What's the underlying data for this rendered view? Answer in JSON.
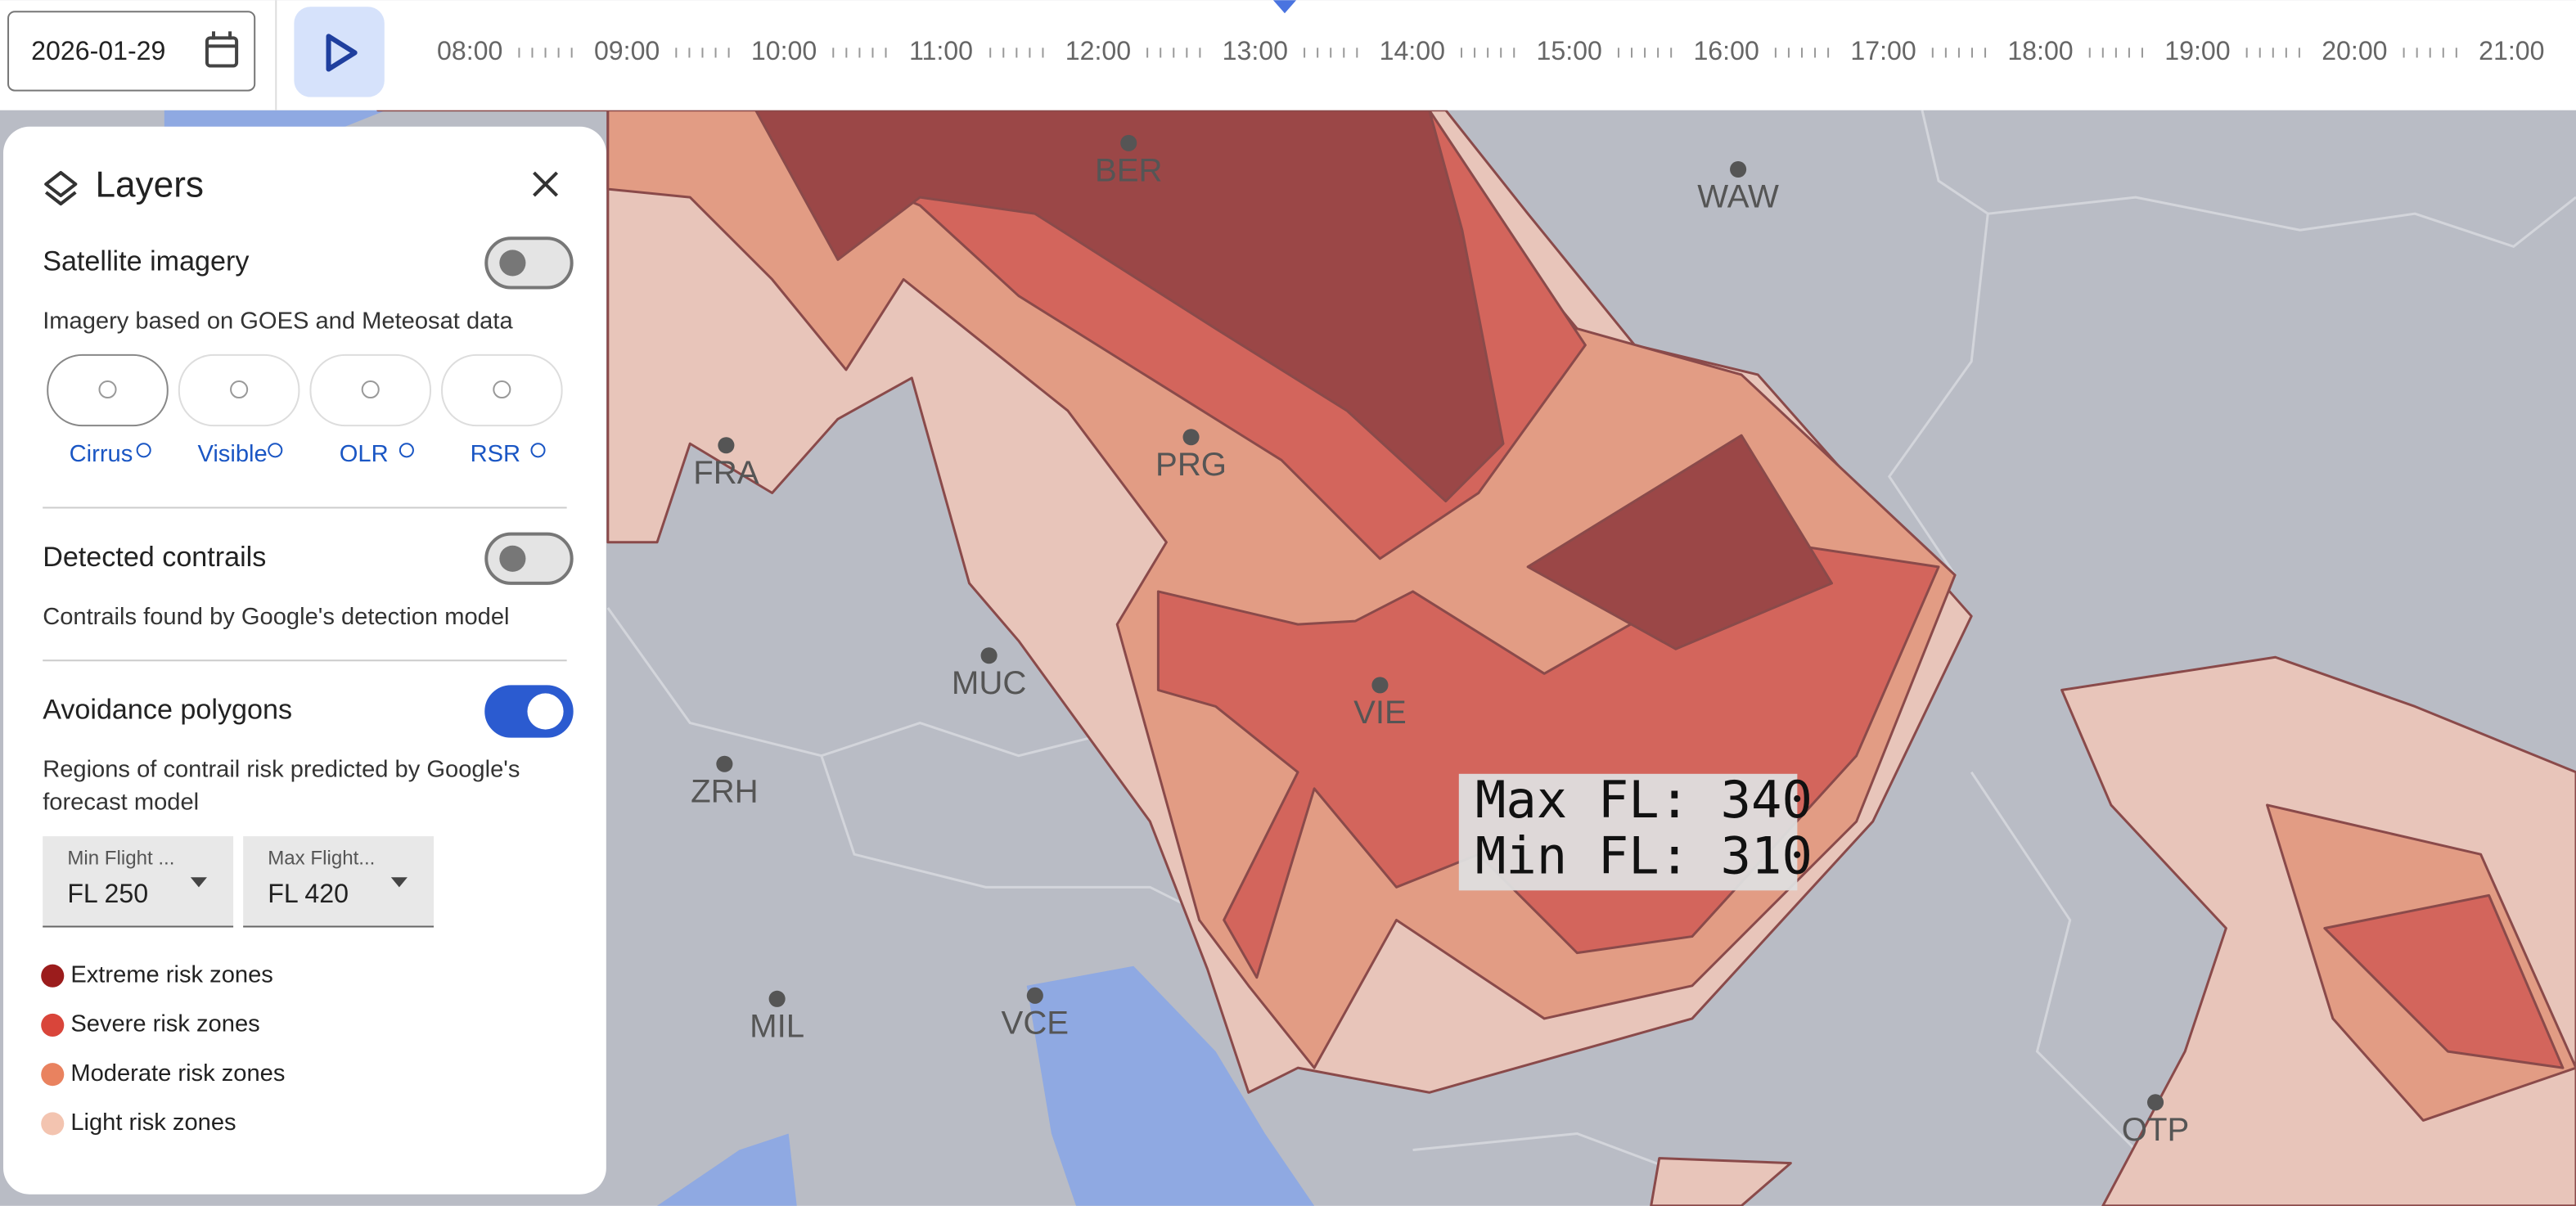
{
  "toolbar": {
    "date": "2026-01-29",
    "hours": [
      "08:00",
      "09:00",
      "10:00",
      "11:00",
      "12:00",
      "13:00",
      "14:00",
      "15:00",
      "16:00",
      "17:00",
      "18:00",
      "19:00",
      "20:00",
      "21:00"
    ]
  },
  "layers": {
    "title": "Layers",
    "satellite": {
      "label": "Satellite imagery",
      "enabled": false,
      "description": "Imagery based on GOES and Meteosat data",
      "options": [
        "Cirrus",
        "Visible",
        "OLR",
        "RSR"
      ]
    },
    "contrails": {
      "label": "Detected contrails",
      "enabled": false,
      "description": "Contrails found by Google's detection model"
    },
    "avoidance": {
      "label": "Avoidance polygons",
      "enabled": true,
      "description": [
        "Regions of contrail risk predicted by Google's",
        "forecast model"
      ],
      "min_flight": {
        "label": "Min Flight ...",
        "value": "FL 250"
      },
      "max_flight": {
        "label": "Max Flight...",
        "value": "FL 420"
      },
      "legend": [
        "Extreme risk zones",
        "Severe risk zones",
        "Moderate risk zones",
        "Light risk zones"
      ]
    }
  },
  "map": {
    "airports": [
      "BER",
      "WAW",
      "FRA",
      "PRG",
      "MUC",
      "VIE",
      "ZRH",
      "MIL",
      "VCE",
      "OTP"
    ],
    "tooltip": [
      "Max FL: 340",
      "Min FL: 310"
    ]
  }
}
